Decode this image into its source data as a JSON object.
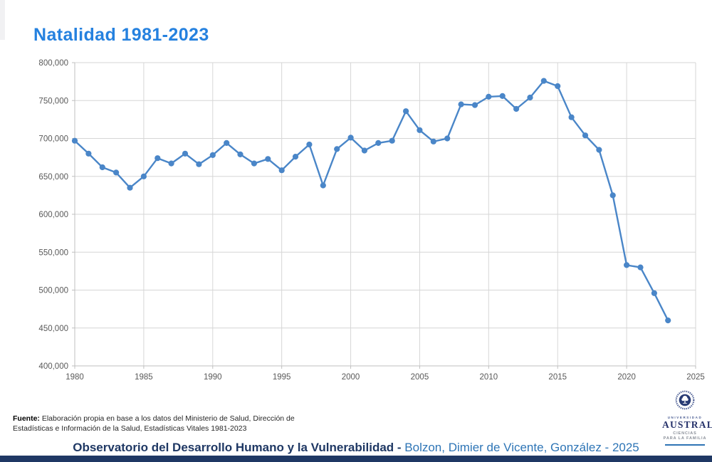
{
  "title": "Natalidad 1981-2023",
  "chart_data": {
    "type": "line",
    "title": "Natalidad 1981-2023",
    "xlabel": "",
    "ylabel": "",
    "xlim": [
      1980,
      2025
    ],
    "ylim": [
      400000,
      800000
    ],
    "grid": true,
    "legend": "none",
    "line_color": "#4a86c8",
    "marker_color": "#4a86c8",
    "x_ticks": [
      1980,
      1985,
      1990,
      1995,
      2000,
      2005,
      2010,
      2015,
      2020,
      2025
    ],
    "y_ticks": [
      400000,
      450000,
      500000,
      550000,
      600000,
      650000,
      700000,
      750000,
      800000
    ],
    "y_tick_labels": [
      "400,000",
      "450,000",
      "500,000",
      "550,000",
      "600,000",
      "650,000",
      "700,000",
      "750,000",
      "800,000"
    ],
    "x": [
      1980,
      1981,
      1982,
      1983,
      1984,
      1985,
      1986,
      1987,
      1988,
      1989,
      1990,
      1991,
      1992,
      1993,
      1994,
      1995,
      1996,
      1997,
      1998,
      1999,
      2000,
      2001,
      2002,
      2003,
      2004,
      2005,
      2006,
      2007,
      2008,
      2009,
      2010,
      2011,
      2012,
      2013,
      2014,
      2015,
      2016,
      2017,
      2018,
      2019,
      2020,
      2021,
      2022,
      2023
    ],
    "values": [
      697000,
      680000,
      662000,
      655000,
      635000,
      650000,
      674000,
      667000,
      680000,
      666000,
      678000,
      694000,
      679000,
      667000,
      673000,
      658000,
      676000,
      692000,
      638000,
      686000,
      701000,
      684000,
      694000,
      697000,
      736000,
      711000,
      696000,
      700000,
      745000,
      744000,
      755000,
      756000,
      739000,
      754000,
      776000,
      769000,
      728000,
      704000,
      685000,
      625000,
      533000,
      530000,
      496000,
      460000
    ]
  },
  "footer": {
    "fuente_label": "Fuente:",
    "source_line1": " Elaboración propia en base a los datos del Ministerio de Salud, Dirección de",
    "source_line2": "Estadísticas e Información de la Salud, Estadísticas Vitales 1981-2023"
  },
  "logo": {
    "universidad": "UNIVERSIDAD",
    "austral": "AUSTRAL",
    "ciencias_line1": "CIENCIAS",
    "ciencias_line2": "PARA LA FAMILIA"
  },
  "credit": {
    "left": "Observatorio del Desarrollo Humano y la Vulnerabilidad - ",
    "right": "Bolzon, Dimier de Vicente, González - 2025"
  },
  "colors": {
    "title_blue": "#2581df",
    "line_blue": "#4a86c8",
    "navy": "#1f3864",
    "credit_blue": "#2e75b6",
    "gridline": "#d6d6d6",
    "axis": "#bfbfbf",
    "tick_text": "#595959"
  }
}
